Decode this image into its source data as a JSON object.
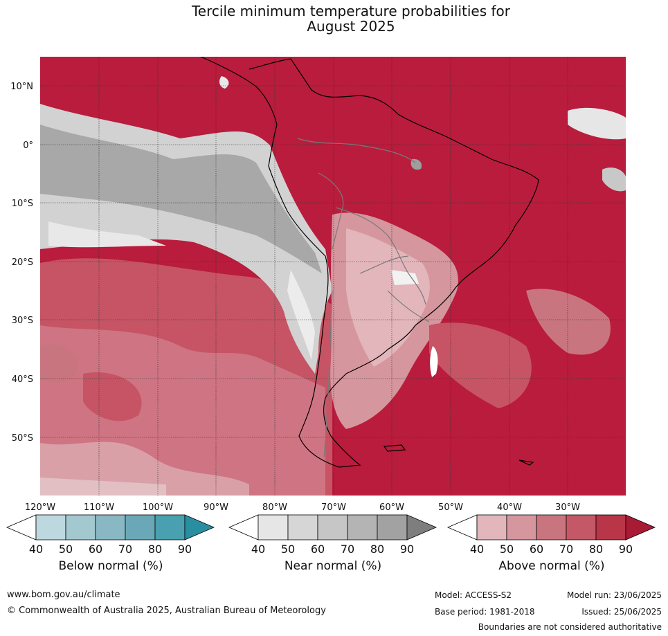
{
  "title": {
    "line1": "Tercile minimum temperature probabilities for",
    "line2": "August 2025"
  },
  "map": {
    "region": "South America",
    "lat_labels": [
      "10°N",
      "0°",
      "10°S",
      "20°S",
      "30°S",
      "40°S",
      "50°S"
    ],
    "lon_labels": [
      "120°W",
      "110°W",
      "100°W",
      "90°W",
      "80°W",
      "70°W",
      "60°W",
      "50°W",
      "40°W",
      "30°W"
    ]
  },
  "colorbars": [
    {
      "label": "Below normal (%)",
      "ticks": [
        "40",
        "50",
        "60",
        "70",
        "80",
        "90"
      ],
      "colors": [
        "#ffffff",
        "#bdd8de",
        "#a3c8d0",
        "#89b8c4",
        "#6aa8b8",
        "#48a0b0",
        "#2a8ea2"
      ]
    },
    {
      "label": "Near normal (%)",
      "ticks": [
        "40",
        "50",
        "60",
        "70",
        "80",
        "90"
      ],
      "colors": [
        "#ffffff",
        "#e6e6e6",
        "#d6d6d6",
        "#c6c6c6",
        "#b4b4b4",
        "#a2a2a2",
        "#7e7e7e"
      ]
    },
    {
      "label": "Above normal (%)",
      "ticks": [
        "40",
        "50",
        "60",
        "70",
        "80",
        "90"
      ],
      "colors": [
        "#ffffff",
        "#e2b6bb",
        "#d5969e",
        "#c97580",
        "#c45866",
        "#b93548",
        "#a91a35"
      ]
    }
  ],
  "footer": {
    "website": "www.bom.gov.au/climate",
    "copyright": "© Commonwealth of Australia 2025, Australian Bureau of Meteorology",
    "model": "Model: ACCESS-S2",
    "base_period": "Base period: 1981-2018",
    "model_run": "Model run: 23/06/2025",
    "issued": "Issued: 25/06/2025",
    "disclaimer": "Boundaries are not considered authoritative"
  }
}
